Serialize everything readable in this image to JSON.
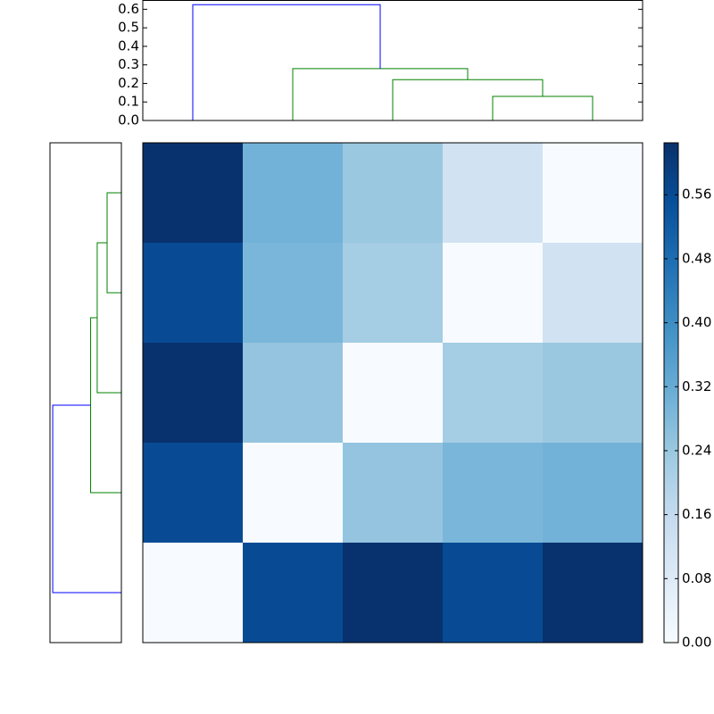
{
  "chart_data": {
    "type": "clustermap",
    "matrix": [
      [
        0.62,
        0.3,
        0.24,
        0.12,
        0.0
      ],
      [
        0.56,
        0.29,
        0.22,
        0.0,
        0.12
      ],
      [
        0.62,
        0.25,
        0.0,
        0.22,
        0.24
      ],
      [
        0.56,
        0.0,
        0.25,
        0.29,
        0.3
      ],
      [
        0.0,
        0.56,
        0.62,
        0.56,
        0.62
      ]
    ],
    "colormap": "Blues",
    "clim": [
      0,
      0.625
    ],
    "colorbar_ticks": [
      {
        "value": 0,
        "label": "0.00"
      },
      {
        "value": 0.08,
        "label": "0.08"
      },
      {
        "value": 0.16,
        "label": "0.16"
      },
      {
        "value": 0.24,
        "label": "0.24"
      },
      {
        "value": 0.32,
        "label": "0.32"
      },
      {
        "value": 0.4,
        "label": "0.40"
      },
      {
        "value": 0.48,
        "label": "0.48"
      },
      {
        "value": 0.56,
        "label": "0.56"
      }
    ],
    "col_dendrogram": {
      "xlim": [
        0,
        50
      ],
      "ylim": [
        0,
        0.65
      ],
      "yticks": [
        {
          "value": 0,
          "label": "0.0"
        },
        {
          "value": 0.1,
          "label": "0.1"
        },
        {
          "value": 0.2,
          "label": "0.2"
        },
        {
          "value": 0.3,
          "label": "0.3"
        },
        {
          "value": 0.4,
          "label": "0.4"
        },
        {
          "value": 0.5,
          "label": "0.5"
        },
        {
          "value": 0.6,
          "label": "0.6"
        }
      ],
      "links": [
        {
          "x": [
            35,
            35,
            45,
            45
          ],
          "y": [
            0,
            0.13,
            0.13,
            0
          ],
          "color": "#008000"
        },
        {
          "x": [
            25,
            25,
            40,
            40
          ],
          "y": [
            0,
            0.22,
            0.22,
            0.13
          ],
          "color": "#008000"
        },
        {
          "x": [
            15,
            15,
            32.5,
            32.5
          ],
          "y": [
            0,
            0.28,
            0.28,
            0.22
          ],
          "color": "#008000"
        },
        {
          "x": [
            5,
            5,
            23.75,
            23.75
          ],
          "y": [
            0,
            0.625,
            0.625,
            0.28
          ],
          "color": "#0000ff"
        }
      ]
    },
    "row_dendrogram": {
      "xlim": [
        0.65,
        0
      ],
      "ylim": [
        0,
        50
      ],
      "links": [
        {
          "y": [
            35,
            35,
            45,
            45
          ],
          "x": [
            0,
            0.13,
            0.13,
            0
          ],
          "color": "#008000"
        },
        {
          "y": [
            25,
            25,
            40,
            40
          ],
          "x": [
            0,
            0.22,
            0.22,
            0.13
          ],
          "color": "#008000"
        },
        {
          "y": [
            15,
            15,
            32.5,
            32.5
          ],
          "x": [
            0,
            0.28,
            0.28,
            0.22
          ],
          "color": "#008000"
        },
        {
          "y": [
            5,
            5,
            23.75,
            23.75
          ],
          "x": [
            0,
            0.625,
            0.625,
            0.28
          ],
          "color": "#0000ff"
        }
      ]
    }
  }
}
